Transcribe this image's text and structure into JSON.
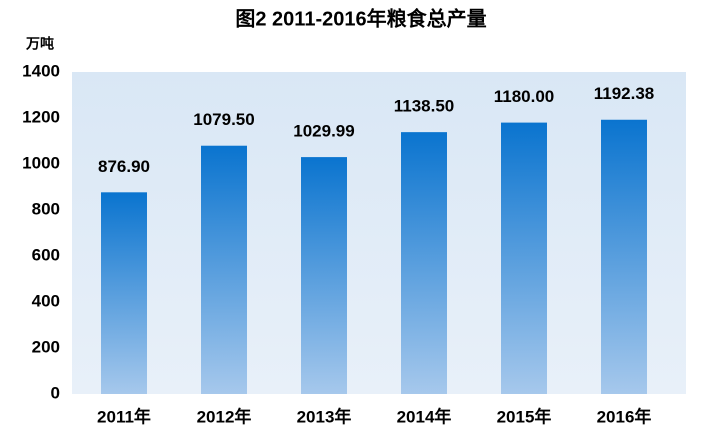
{
  "chart_data": {
    "type": "bar",
    "title": "图2  2011-2016年粮食总产量",
    "y_label": "万吨",
    "categories": [
      "2011年",
      "2012年",
      "2013年",
      "2014年",
      "2015年",
      "2016年"
    ],
    "values": [
      876.9,
      1079.5,
      1029.99,
      1138.5,
      1180,
      1192.38
    ],
    "value_labels": [
      "876.90",
      "1079.50",
      "1029.99",
      "1138.50",
      "1180.00",
      "1192.38"
    ],
    "color": [
      "#0a74cf",
      "#a6c8ec"
    ],
    "ylim": [
      0,
      1400
    ],
    "yticks": [
      0,
      200,
      400,
      600,
      800,
      1000,
      1200,
      1400
    ],
    "grid": false
  }
}
